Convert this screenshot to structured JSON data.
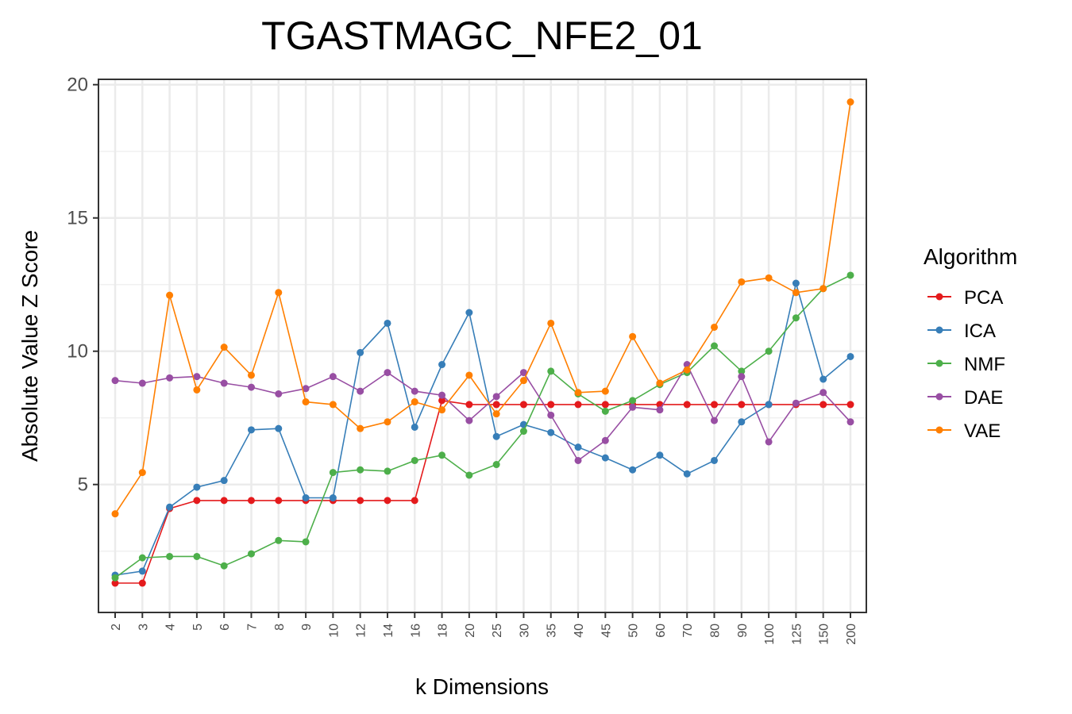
{
  "chart_data": {
    "type": "line",
    "title": "TGASTMAGC_NFE2_01",
    "xlabel": "k Dimensions",
    "ylabel": "Absolute Value Z Score",
    "categories": [
      "2",
      "3",
      "4",
      "5",
      "6",
      "7",
      "8",
      "9",
      "10",
      "12",
      "14",
      "16",
      "18",
      "20",
      "25",
      "30",
      "35",
      "40",
      "45",
      "50",
      "60",
      "70",
      "80",
      "90",
      "100",
      "125",
      "150",
      "200"
    ],
    "yticks": [
      5,
      10,
      15,
      20
    ],
    "ylim": [
      0.2,
      20.2
    ],
    "grid": true,
    "legend": {
      "title": "Algorithm",
      "position": "right"
    },
    "series": [
      {
        "name": "PCA",
        "color": "#e41a1c",
        "values": [
          1.3,
          1.3,
          4.1,
          4.4,
          4.4,
          4.4,
          4.4,
          4.4,
          4.4,
          4.4,
          4.4,
          4.4,
          8.15,
          8.0,
          8.0,
          8.0,
          8.0,
          8.0,
          8.0,
          8.0,
          8.0,
          8.0,
          8.0,
          8.0,
          8.0,
          8.0,
          8.0,
          8.0
        ]
      },
      {
        "name": "ICA",
        "color": "#377eb8",
        "values": [
          1.6,
          1.75,
          4.15,
          4.9,
          5.15,
          7.05,
          7.1,
          4.5,
          4.5,
          9.95,
          11.05,
          7.15,
          9.5,
          11.45,
          6.8,
          7.25,
          6.95,
          6.4,
          6.0,
          5.55,
          6.1,
          5.4,
          5.9,
          7.35,
          8.0,
          12.55,
          8.95,
          9.8
        ]
      },
      {
        "name": "NMF",
        "color": "#4daf4a",
        "values": [
          1.5,
          2.25,
          2.3,
          2.3,
          1.95,
          2.4,
          2.9,
          2.85,
          5.45,
          5.55,
          5.5,
          5.9,
          6.1,
          5.35,
          5.75,
          7.0,
          9.25,
          8.4,
          7.75,
          8.15,
          8.75,
          9.2,
          10.2,
          9.25,
          10.0,
          11.25,
          12.35,
          12.85
        ]
      },
      {
        "name": "DAE",
        "color": "#984ea3",
        "values": [
          8.9,
          8.8,
          9.0,
          9.05,
          8.8,
          8.65,
          8.4,
          8.6,
          9.05,
          8.5,
          9.2,
          8.5,
          8.35,
          7.4,
          8.3,
          9.2,
          7.6,
          5.9,
          6.65,
          7.9,
          7.8,
          9.5,
          7.4,
          9.05,
          6.6,
          8.05,
          8.45,
          7.35
        ]
      },
      {
        "name": "VAE",
        "color": "#ff7f00",
        "values": [
          3.9,
          5.45,
          12.1,
          8.55,
          10.15,
          9.1,
          12.2,
          8.1,
          8.0,
          7.1,
          7.35,
          8.1,
          7.8,
          9.1,
          7.65,
          8.9,
          11.05,
          8.45,
          8.5,
          10.55,
          8.8,
          9.3,
          10.9,
          12.6,
          12.75,
          12.2,
          12.35,
          19.35
        ]
      }
    ]
  }
}
